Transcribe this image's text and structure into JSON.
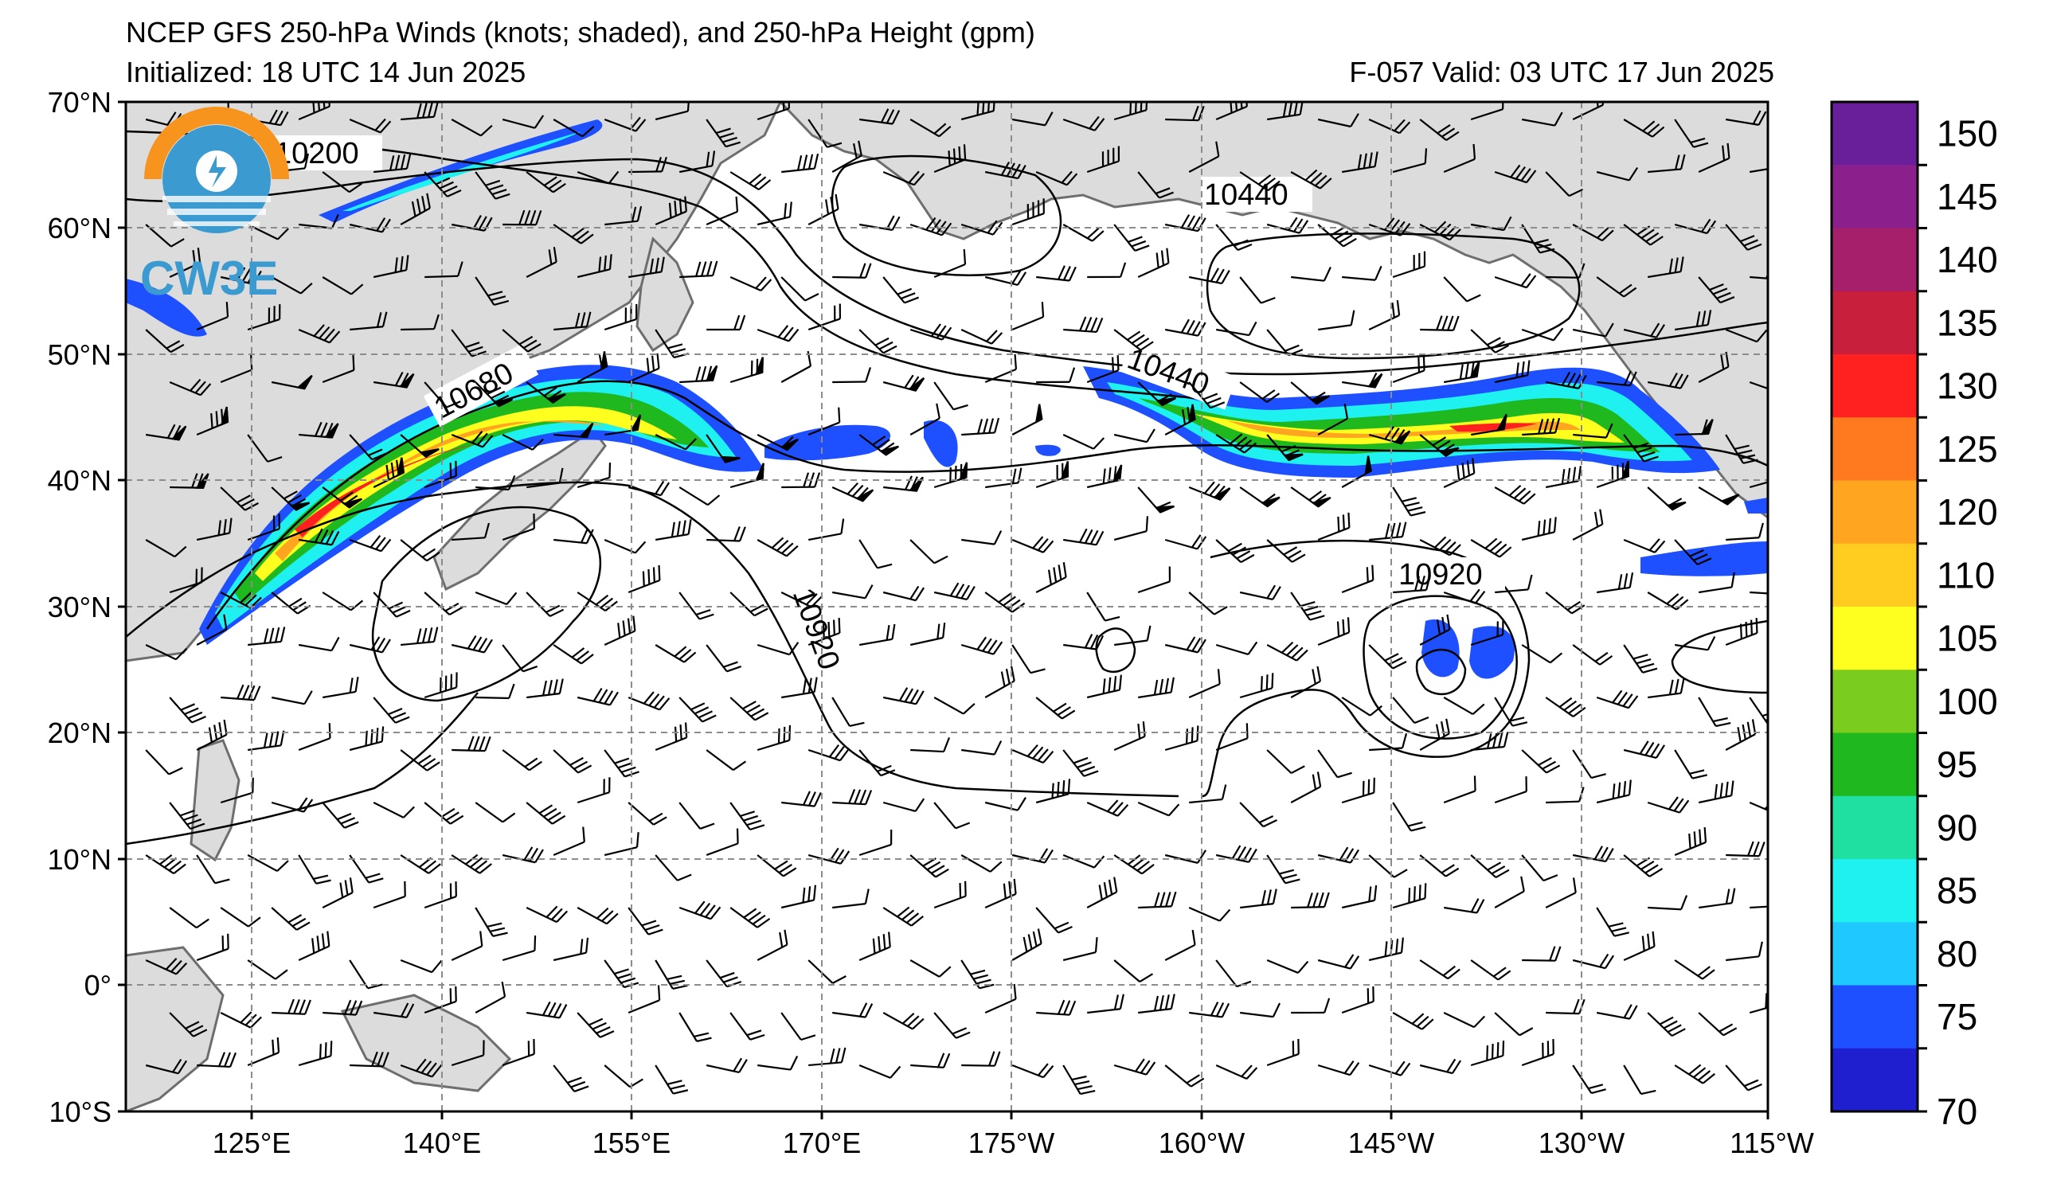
{
  "header": {
    "title": "NCEP GFS 250-hPa Winds (knots; shaded), and 250-hPa Height (gpm)",
    "initialized": "Initialized: 18 UTC 14 Jun 2025",
    "valid": "F-057  Valid: 03 UTC 17 Jun 2025"
  },
  "logo": {
    "text": "CW3E"
  },
  "map": {
    "lat_ticks": [
      "70°N",
      "60°N",
      "50°N",
      "40°N",
      "30°N",
      "20°N",
      "10°N",
      "0°",
      "10°S"
    ],
    "lon_ticks": [
      "125°E",
      "140°E",
      "155°E",
      "170°E",
      "175°W",
      "160°W",
      "145°W",
      "130°W",
      "115°W"
    ],
    "contour_labels": [
      "10200",
      "10440",
      "10680",
      "10440",
      "10920",
      "10920"
    ]
  },
  "colorbar": {
    "labels": [
      "150",
      "145",
      "140",
      "135",
      "130",
      "125",
      "120",
      "110",
      "105",
      "100",
      "95",
      "90",
      "85",
      "80",
      "75",
      "70"
    ],
    "colors": [
      "#6a1f9a",
      "#8b1f8c",
      "#a51f6a",
      "#c81f3c",
      "#ff2020",
      "#ff7a1f",
      "#ffa51f",
      "#ffcc1f",
      "#ffff1f",
      "#7acc1f",
      "#1fb81f",
      "#1fe0a0",
      "#1ff0f0",
      "#1fc8ff",
      "#1f50ff",
      "#1f1fd0"
    ]
  },
  "colors": {
    "land": "#dcdcdc",
    "coast": "#6e6e6e",
    "grid": "#8c8c8c",
    "contour": "#000000",
    "logo_orange": "#f7941d",
    "logo_blue": "#3b9bd1"
  }
}
